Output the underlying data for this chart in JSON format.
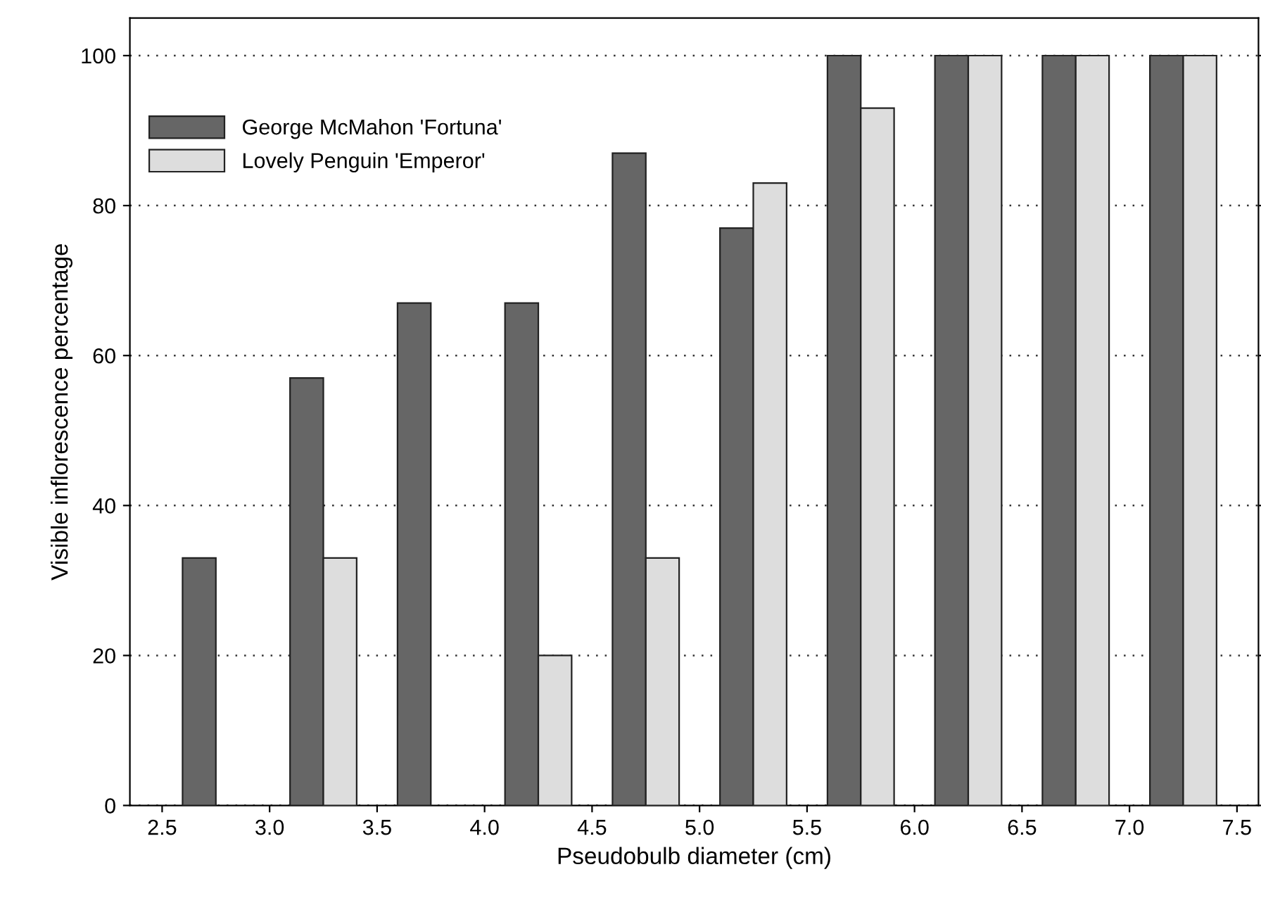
{
  "chart_data": {
    "type": "bar",
    "xlabel": "Pseudobulb diameter (cm)",
    "ylabel": "Visible inflorescence percentage",
    "x": [
      2.75,
      3.25,
      3.75,
      4.25,
      4.75,
      5.25,
      5.75,
      6.25,
      6.75,
      7.25
    ],
    "series": [
      {
        "name": "George McMahon 'Fortuna'",
        "color": "#666666",
        "values": [
          33,
          57,
          67,
          67,
          87,
          77,
          100,
          100,
          100,
          100
        ]
      },
      {
        "name": "Lovely Penguin 'Emperor'",
        "color": "#dddddd",
        "values": [
          null,
          33,
          null,
          20,
          33,
          83,
          93,
          100,
          100,
          100
        ]
      }
    ],
    "xlim": [
      2.35,
      7.6
    ],
    "xticks": [
      2.5,
      {
        "value": 3,
        "label": "3.0"
      },
      3.5,
      {
        "value": 4,
        "label": "4.0"
      },
      4.5,
      {
        "value": 5,
        "label": "5.0"
      },
      5.5,
      {
        "value": 6,
        "label": "6.0"
      },
      6.5,
      {
        "value": 7,
        "label": "7.0"
      },
      7.5
    ],
    "ylim": [
      0,
      105
    ],
    "yticks": [
      0,
      20,
      40,
      60,
      80,
      100
    ],
    "grid": "y",
    "legend": "top left"
  }
}
